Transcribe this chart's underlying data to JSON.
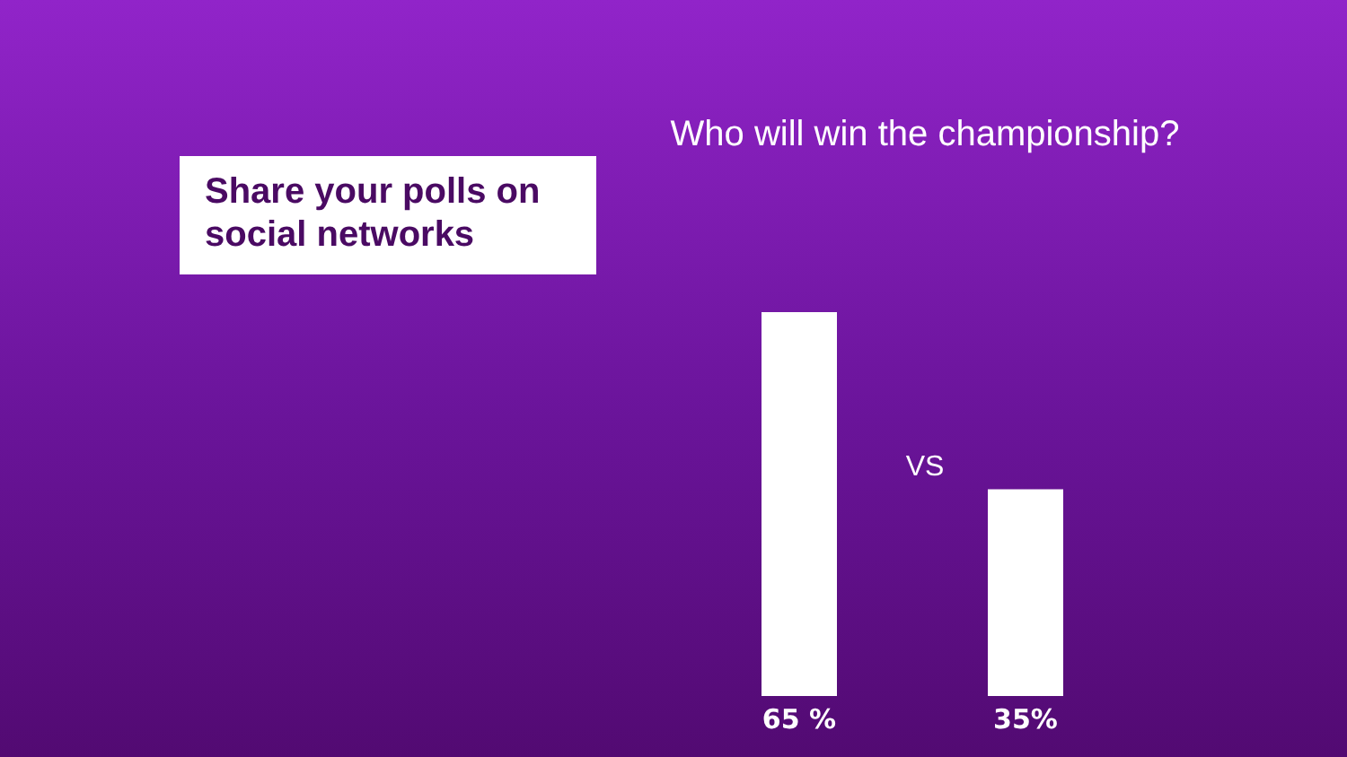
{
  "chart_data": {
    "type": "bar",
    "title": "Who will win the championship?",
    "categories": [
      null,
      null
    ],
    "values": [
      65,
      35
    ],
    "value_labels": [
      "65 %",
      "35%"
    ],
    "color": "#ffffff",
    "annotations": [
      "Share your polls on social networks",
      "VS"
    ]
  }
}
